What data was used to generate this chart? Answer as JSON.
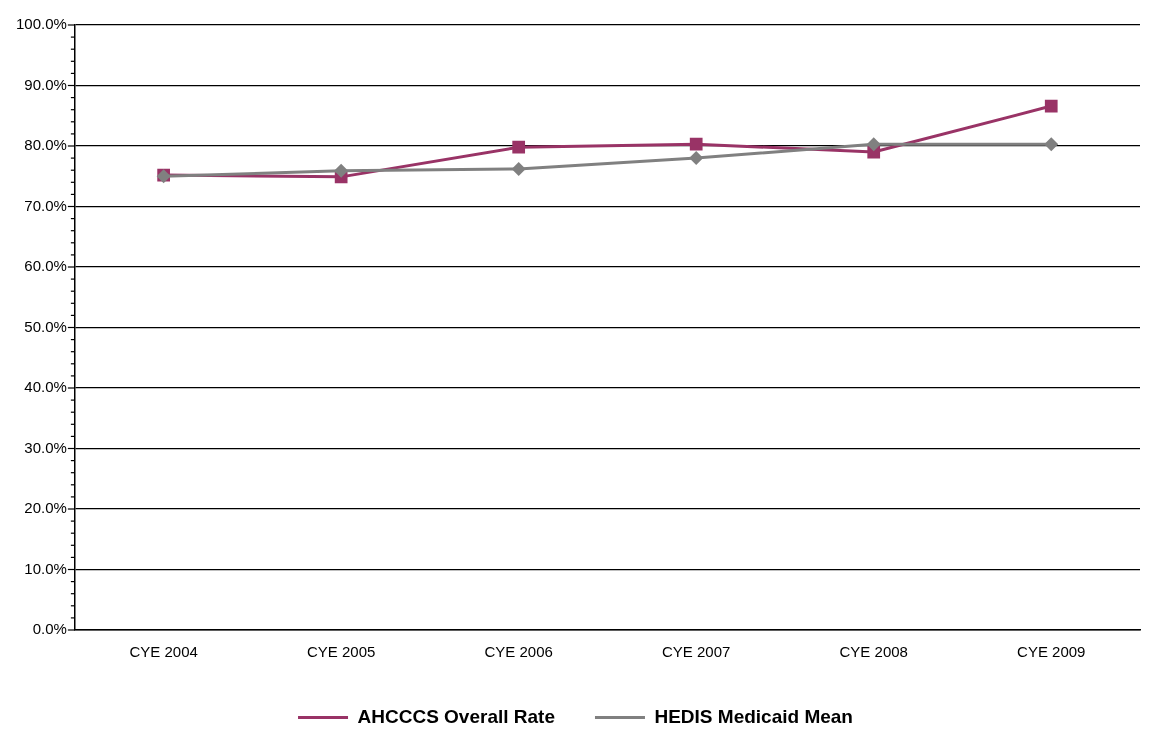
{
  "chart_data": {
    "type": "line",
    "categories": [
      "CYE 2004",
      "CYE 2005",
      "CYE 2006",
      "CYE 2007",
      "CYE 2008",
      "CYE 2009"
    ],
    "series": [
      {
        "name": "AHCCCS Overall Rate",
        "color": "#993366",
        "marker": "square",
        "values": [
          75.2,
          74.9,
          79.8,
          80.3,
          79.0,
          86.6
        ]
      },
      {
        "name": "HEDIS Medicaid Mean",
        "color": "#808080",
        "marker": "diamond",
        "values": [
          75.0,
          75.9,
          76.2,
          78.0,
          80.3,
          80.3
        ]
      }
    ],
    "ylim": [
      0,
      100
    ],
    "yticks": [
      {
        "value": 0,
        "label": "0.0%"
      },
      {
        "value": 2,
        "label": null
      },
      {
        "value": 4,
        "label": null
      },
      {
        "value": 6,
        "label": null
      },
      {
        "value": 8,
        "label": null
      },
      {
        "value": 10,
        "label": "10.0%"
      },
      {
        "value": 12,
        "label": null
      },
      {
        "value": 14,
        "label": null
      },
      {
        "value": 16,
        "label": null
      },
      {
        "value": 18,
        "label": null
      },
      {
        "value": 20,
        "label": "20.0%"
      },
      {
        "value": 22,
        "label": null
      },
      {
        "value": 24,
        "label": null
      },
      {
        "value": 26,
        "label": null
      },
      {
        "value": 28,
        "label": null
      },
      {
        "value": 30,
        "label": "30.0%"
      },
      {
        "value": 32,
        "label": null
      },
      {
        "value": 34,
        "label": null
      },
      {
        "value": 36,
        "label": null
      },
      {
        "value": 38,
        "label": null
      },
      {
        "value": 40,
        "label": "40.0%"
      },
      {
        "value": 42,
        "label": null
      },
      {
        "value": 44,
        "label": null
      },
      {
        "value": 46,
        "label": null
      },
      {
        "value": 48,
        "label": null
      },
      {
        "value": 50,
        "label": "50.0%"
      },
      {
        "value": 52,
        "label": null
      },
      {
        "value": 54,
        "label": null
      },
      {
        "value": 56,
        "label": null
      },
      {
        "value": 58,
        "label": null
      },
      {
        "value": 60,
        "label": "60.0%"
      },
      {
        "value": 62,
        "label": null
      },
      {
        "value": 64,
        "label": null
      },
      {
        "value": 66,
        "label": null
      },
      {
        "value": 68,
        "label": null
      },
      {
        "value": 70,
        "label": "70.0%"
      },
      {
        "value": 72,
        "label": null
      },
      {
        "value": 74,
        "label": null
      },
      {
        "value": 76,
        "label": null
      },
      {
        "value": 78,
        "label": null
      },
      {
        "value": 80,
        "label": "80.0%"
      },
      {
        "value": 82,
        "label": null
      },
      {
        "value": 84,
        "label": null
      },
      {
        "value": 86,
        "label": null
      },
      {
        "value": 88,
        "label": null
      },
      {
        "value": 90,
        "label": "90.0%"
      },
      {
        "value": 92,
        "label": null
      },
      {
        "value": 94,
        "label": null
      },
      {
        "value": 96,
        "label": null
      },
      {
        "value": 98,
        "label": null
      },
      {
        "value": 100,
        "label": "100.0%"
      }
    ],
    "grid": "y",
    "legend": "bottom",
    "line_style": "solid"
  }
}
